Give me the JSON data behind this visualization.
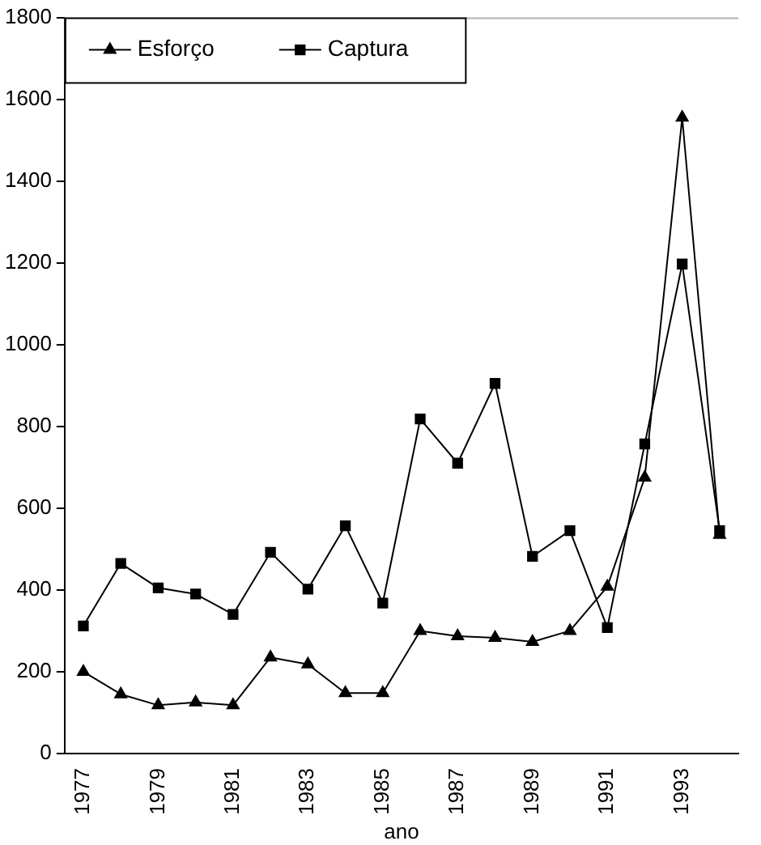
{
  "chart_data": {
    "type": "line",
    "xlabel": "ano",
    "categories": [
      "1977",
      null,
      "1979",
      null,
      "1981",
      null,
      "1983",
      null,
      "1985",
      null,
      "1987",
      null,
      "1989",
      null,
      "1991",
      null,
      "1993",
      null
    ],
    "series": [
      {
        "name": "Esforço",
        "color": "#000000",
        "marker": "triangle",
        "values": [
          200,
          145,
          118,
          125,
          118,
          235,
          218,
          148,
          148,
          300,
          287,
          283,
          273,
          300,
          408,
          675,
          1555,
          535
        ]
      },
      {
        "name": "Captura",
        "color": "#000000",
        "marker": "square",
        "values": [
          312,
          465,
          405,
          390,
          340,
          492,
          402,
          557,
          368,
          818,
          710,
          905,
          482,
          545,
          308,
          757,
          1197,
          545
        ]
      }
    ],
    "ylim": [
      0,
      1800
    ],
    "yticks": [
      0,
      200,
      400,
      600,
      800,
      1000,
      1200,
      1400,
      1600,
      1800
    ],
    "grid": false,
    "legend": "top left"
  }
}
